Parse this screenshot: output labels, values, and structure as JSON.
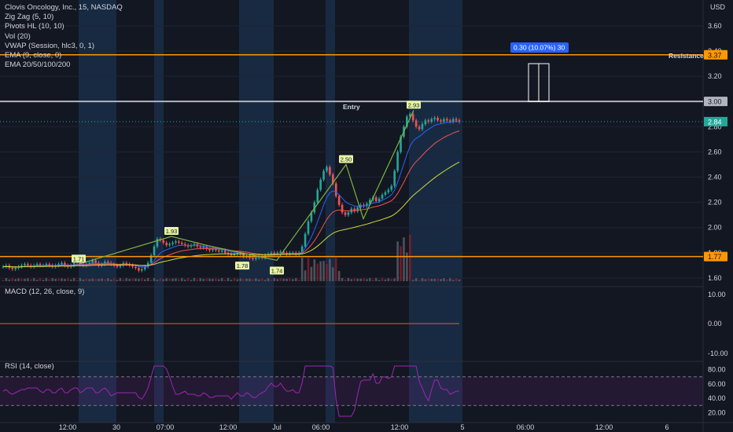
{
  "header": {
    "symbol": "Clovis Oncology, Inc., 15, NASDAQ",
    "currency": "USD"
  },
  "indicators": [
    "Zig Zag (5, 10)",
    "Pivots HL (10, 10)",
    "Vol (20)",
    "VWAP (Session, hlc3, 0, 1)",
    "EMA (9, close, 0)",
    "EMA 20/50/100/200"
  ],
  "macd_label": "MACD (12, 26, close, 9)",
  "rsi_label": "RSI (14, close)",
  "colors": {
    "background": "#131722",
    "session_shade": "#1e3a5c",
    "up": "#26a69a",
    "down": "#ef5350",
    "orange_line": "#ff9800",
    "resistance_box": "#2962ff",
    "price_tag": "#26a69a",
    "zigzag": "#7cb342",
    "rsi": "#9c27b0"
  },
  "chart_data": {
    "type": "candlestick",
    "price_axis": {
      "ticks": [
        "3.60",
        "3.40",
        "3.20",
        "3.00",
        "2.80",
        "2.60",
        "2.40",
        "2.20",
        "2.00",
        "1.80",
        "1.60"
      ],
      "ylim": [
        1.55,
        3.68
      ]
    },
    "time_axis": {
      "ticks": [
        "12:00",
        "30",
        "07:00",
        "12:00",
        "Jul",
        "06:00",
        "12:00",
        "5",
        "06:00",
        "12:00",
        "6"
      ]
    },
    "horizontal_lines": [
      {
        "price": 3.37,
        "label": "3.37",
        "text": "Resistance"
      },
      {
        "price": 3.0,
        "label": "3.00",
        "text": "Entry"
      },
      {
        "price": 1.77,
        "label": "1.77",
        "text": ""
      }
    ],
    "current_price": {
      "value": 2.84,
      "label": "2.84"
    },
    "measure": {
      "text": "0.30 (10.07%) 30",
      "from": 3.0,
      "to": 3.3
    },
    "pivot_labels": [
      {
        "text": "1.71",
        "price": 1.71
      },
      {
        "text": "1.93",
        "price": 1.93
      },
      {
        "text": "1.78",
        "price": 1.78
      },
      {
        "text": "1.74",
        "price": 1.74
      },
      {
        "text": "2.50",
        "price": 2.5
      },
      {
        "text": "2.93",
        "price": 2.93
      }
    ],
    "zigzag_values": [
      1.71,
      1.93,
      1.86,
      1.74,
      2.5,
      2.07,
      2.93
    ],
    "close_series": [
      1.69,
      1.7,
      1.68,
      1.67,
      1.68,
      1.69,
      1.7,
      1.71,
      1.7,
      1.69,
      1.7,
      1.71,
      1.7,
      1.7,
      1.71,
      1.7,
      1.69,
      1.7,
      1.71,
      1.72,
      1.7,
      1.69,
      1.7,
      1.72,
      1.73,
      1.71,
      1.7,
      1.71,
      1.72,
      1.74,
      1.72,
      1.7,
      1.71,
      1.73,
      1.72,
      1.71,
      1.7,
      1.69,
      1.7,
      1.72,
      1.71,
      1.7,
      1.69,
      1.68,
      1.66,
      1.67,
      1.69,
      1.72,
      1.78,
      1.85,
      1.91,
      1.9,
      1.88,
      1.86,
      1.87,
      1.88,
      1.89,
      1.88,
      1.87,
      1.86,
      1.85,
      1.86,
      1.87,
      1.85,
      1.84,
      1.85,
      1.83,
      1.82,
      1.83,
      1.82,
      1.81,
      1.82,
      1.8,
      1.79,
      1.78,
      1.79,
      1.8,
      1.79,
      1.77,
      1.78,
      1.76,
      1.75,
      1.76,
      1.77,
      1.76,
      1.78,
      1.79,
      1.8,
      1.79,
      1.8,
      1.81,
      1.8,
      1.79,
      1.8,
      1.8,
      1.79,
      1.8,
      1.85,
      1.95,
      2.05,
      2.12,
      2.2,
      2.3,
      2.38,
      2.45,
      2.48,
      2.42,
      2.35,
      2.25,
      2.18,
      2.12,
      2.1,
      2.12,
      2.15,
      2.13,
      2.16,
      2.18,
      2.17,
      2.19,
      2.22,
      2.24,
      2.21,
      2.23,
      2.26,
      2.28,
      2.3,
      2.33,
      2.45,
      2.6,
      2.72,
      2.8,
      2.88,
      2.9,
      2.85,
      2.8,
      2.78,
      2.82,
      2.85,
      2.84,
      2.86,
      2.87,
      2.85,
      2.84,
      2.86,
      2.85,
      2.84,
      2.86,
      2.85,
      2.84
    ],
    "macd_axis": {
      "ticks": [
        "10.00",
        "0.00",
        "-10.00"
      ]
    },
    "rsi_axis": {
      "ticks": [
        "80.00",
        "60.00",
        "40.00",
        "20.00"
      ],
      "bands": [
        70,
        30
      ]
    }
  }
}
